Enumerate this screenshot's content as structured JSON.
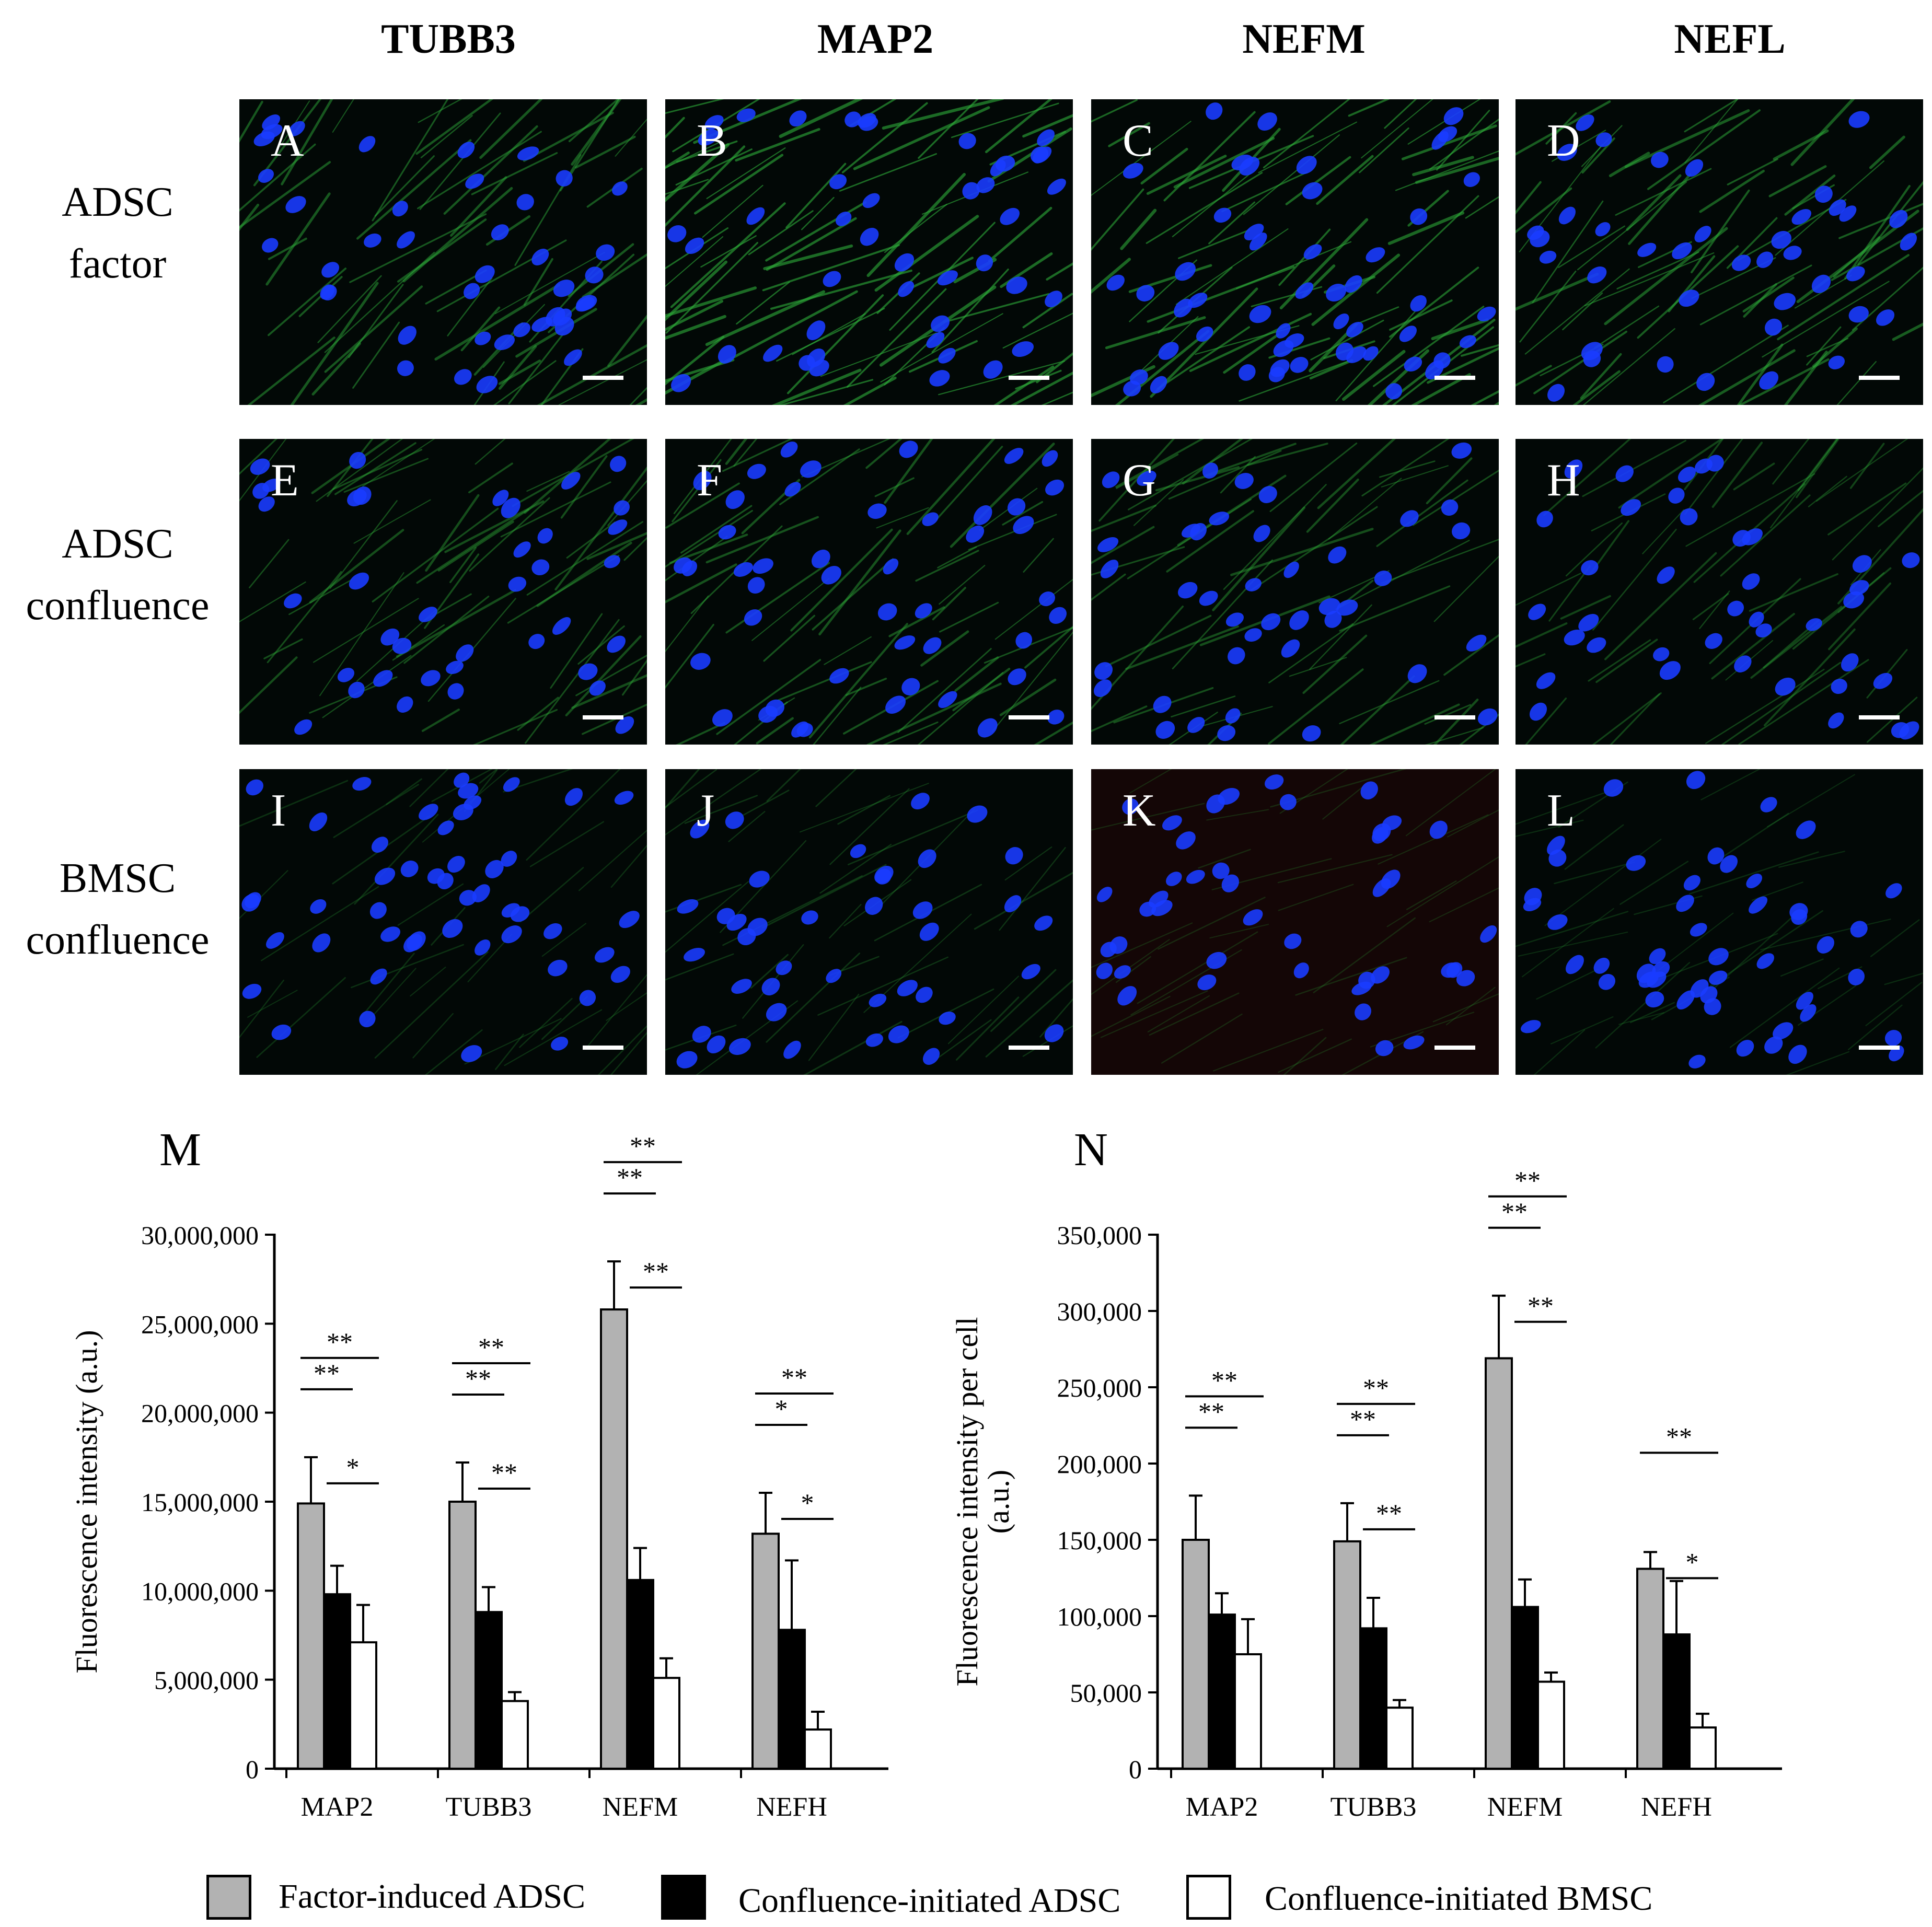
{
  "figure": {
    "column_headers": [
      "TUBB3",
      "MAP2",
      "NEFM",
      "NEFL"
    ],
    "row_headers": [
      [
        "ADSC",
        "factor"
      ],
      [
        "ADSC",
        "confluence"
      ],
      [
        "BMSC",
        "confluence"
      ]
    ],
    "panels": [
      {
        "label": "A",
        "green": 0.55
      },
      {
        "label": "B",
        "green": 0.75
      },
      {
        "label": "C",
        "green": 0.7
      },
      {
        "label": "D",
        "green": 0.6
      },
      {
        "label": "E",
        "green": 0.45
      },
      {
        "label": "F",
        "green": 0.5
      },
      {
        "label": "G",
        "green": 0.45
      },
      {
        "label": "H",
        "green": 0.35
      },
      {
        "label": "I",
        "green": 0.15
      },
      {
        "label": "J",
        "green": 0.2
      },
      {
        "label": "K",
        "green": 0.1
      },
      {
        "label": "L",
        "green": 0.12
      }
    ],
    "colors": {
      "factor": "#b2b2b2",
      "confluence_adsc": "#000000",
      "confluence_bmsc": "#ffffff",
      "nuclei": "#1a3cff",
      "fiber": "#2fae3a"
    }
  },
  "legend": {
    "items": [
      {
        "label": "Factor-induced ADSC",
        "color": "#b2b2b2"
      },
      {
        "label": "Confluence-initiated ADSC",
        "color": "#000000"
      },
      {
        "label": "Confluence-initiated BMSC",
        "color": "#ffffff"
      }
    ]
  },
  "chart_data": [
    {
      "panel": "M",
      "type": "bar",
      "ylabel": "Fluorescence intensity (a.u.)",
      "ylim": [
        0,
        30000000
      ],
      "yticks": [
        0,
        5000000,
        10000000,
        15000000,
        20000000,
        25000000,
        30000000
      ],
      "ytick_labels": [
        "0",
        "5,000,000",
        "10,000,000",
        "15,000,000",
        "20,000,000",
        "25,000,000",
        "30,000,000"
      ],
      "categories": [
        "MAP2",
        "TUBB3",
        "NEFM",
        "NEFH"
      ],
      "series": [
        {
          "name": "Factor-induced ADSC",
          "color": "#b2b2b2",
          "values": [
            14900000,
            15000000,
            25800000,
            13200000
          ],
          "errors": [
            2600000,
            2200000,
            2700000,
            2300000
          ]
        },
        {
          "name": "Confluence-initiated ADSC",
          "color": "#000000",
          "values": [
            9800000,
            8800000,
            10600000,
            7800000
          ],
          "errors": [
            1600000,
            1400000,
            1800000,
            3900000
          ]
        },
        {
          "name": "Confluence-initiated BMSC",
          "color": "#ffffff",
          "values": [
            7100000,
            3800000,
            5100000,
            2200000
          ],
          "errors": [
            2100000,
            500000,
            1100000,
            1000000
          ]
        }
      ],
      "significance": [
        {
          "category": 0,
          "pair": [
            0,
            2
          ],
          "label": "**"
        },
        {
          "category": 0,
          "pair": [
            0,
            1
          ],
          "label": "**"
        },
        {
          "category": 0,
          "pair": [
            1,
            2
          ],
          "label": "*"
        },
        {
          "category": 1,
          "pair": [
            0,
            2
          ],
          "label": "**"
        },
        {
          "category": 1,
          "pair": [
            0,
            1
          ],
          "label": "**"
        },
        {
          "category": 1,
          "pair": [
            1,
            2
          ],
          "label": "**"
        },
        {
          "category": 2,
          "pair": [
            0,
            2
          ],
          "label": "**"
        },
        {
          "category": 2,
          "pair": [
            0,
            1
          ],
          "label": "**"
        },
        {
          "category": 2,
          "pair": [
            1,
            2
          ],
          "label": "**"
        },
        {
          "category": 3,
          "pair": [
            0,
            2
          ],
          "label": "**"
        },
        {
          "category": 3,
          "pair": [
            0,
            1
          ],
          "label": "*"
        },
        {
          "category": 3,
          "pair": [
            1,
            2
          ],
          "label": "*"
        }
      ]
    },
    {
      "panel": "N",
      "type": "bar",
      "ylabel": [
        "Fluorescence intensity per cell",
        "(a.u.)"
      ],
      "ylim": [
        0,
        350000
      ],
      "yticks": [
        0,
        50000,
        100000,
        150000,
        200000,
        250000,
        300000,
        350000
      ],
      "ytick_labels": [
        "0",
        "50,000",
        "100,000",
        "150,000",
        "200,000",
        "250,000",
        "300,000",
        "350,000"
      ],
      "categories": [
        "MAP2",
        "TUBB3",
        "NEFM",
        "NEFH"
      ],
      "series": [
        {
          "name": "Factor-induced ADSC",
          "color": "#b2b2b2",
          "values": [
            150000,
            149000,
            269000,
            131000
          ],
          "errors": [
            29000,
            25000,
            41000,
            11000
          ]
        },
        {
          "name": "Confluence-initiated ADSC",
          "color": "#000000",
          "values": [
            101000,
            92000,
            106000,
            88000
          ],
          "errors": [
            14000,
            20000,
            18000,
            35000
          ]
        },
        {
          "name": "Confluence-initiated BMSC",
          "color": "#ffffff",
          "values": [
            75000,
            40000,
            57000,
            27000
          ],
          "errors": [
            23000,
            5000,
            6000,
            9000
          ]
        }
      ],
      "significance": [
        {
          "category": 0,
          "pair": [
            0,
            2
          ],
          "label": "**"
        },
        {
          "category": 0,
          "pair": [
            0,
            1
          ],
          "label": "**"
        },
        {
          "category": 1,
          "pair": [
            0,
            2
          ],
          "label": "**"
        },
        {
          "category": 1,
          "pair": [
            0,
            1
          ],
          "label": "**"
        },
        {
          "category": 1,
          "pair": [
            1,
            2
          ],
          "label": "**"
        },
        {
          "category": 2,
          "pair": [
            0,
            2
          ],
          "label": "**"
        },
        {
          "category": 2,
          "pair": [
            0,
            1
          ],
          "label": "**"
        },
        {
          "category": 2,
          "pair": [
            1,
            2
          ],
          "label": "**"
        },
        {
          "category": 3,
          "pair": [
            0,
            2
          ],
          "label": "**"
        },
        {
          "category": 3,
          "pair": [
            1,
            2
          ],
          "label": "*"
        }
      ]
    }
  ]
}
